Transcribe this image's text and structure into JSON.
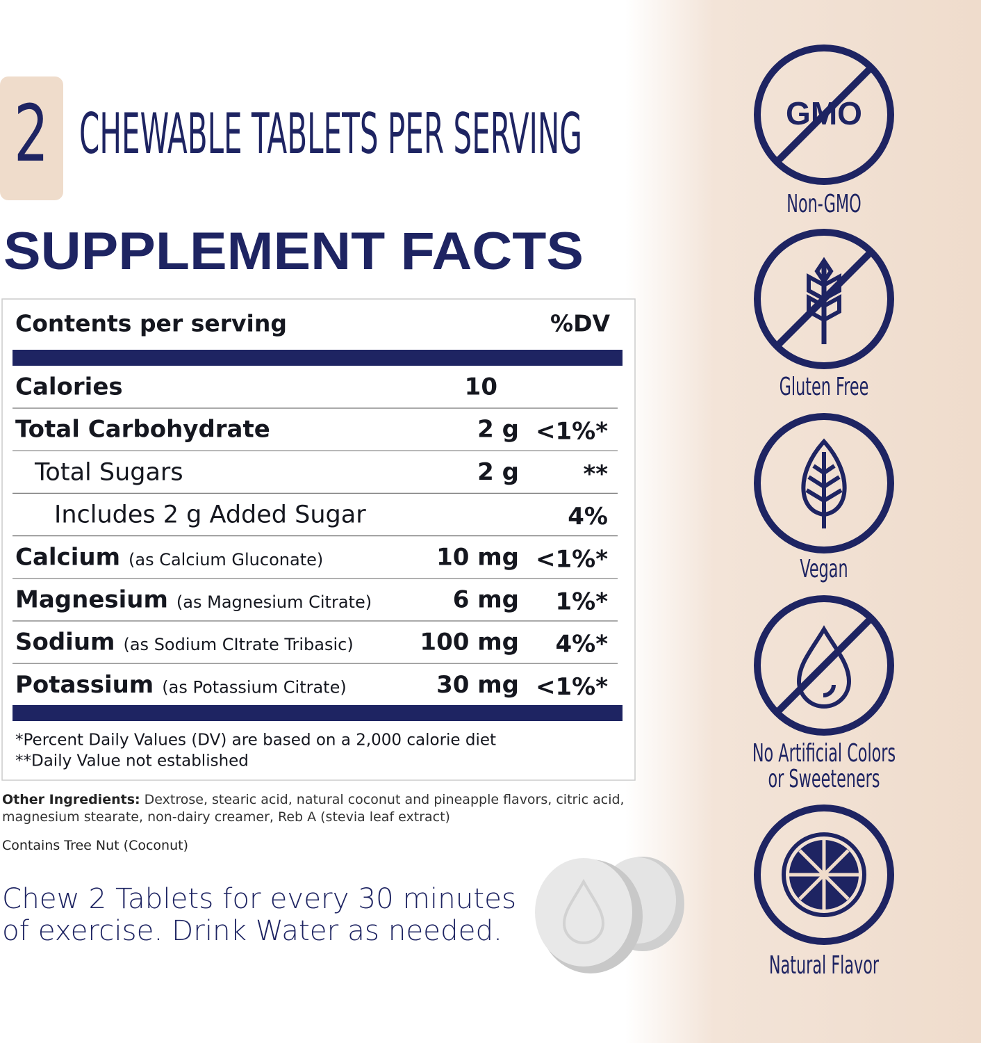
{
  "serving": {
    "number": "2",
    "text": "CHEWABLE TABLETS PER SERVING"
  },
  "title": "SUPPLEMENT FACTS",
  "table": {
    "header": [
      "Contents per serving",
      "%DV"
    ],
    "rows": [
      {
        "name": "Calories",
        "amount": "10"
      },
      {
        "name": "Total Carbohydrate",
        "amount": "2 g",
        "dv": "<1%*"
      },
      {
        "name": "Total Sugars",
        "amount": "2 g",
        "dv": "**"
      },
      {
        "name": "Includes 2 g Added Sugar",
        "dv": "4%"
      },
      {
        "name": "Calcium",
        "source": "(as Calcium Gluconate)",
        "amount": "10 mg",
        "dv": "<1%*"
      },
      {
        "name": "Magnesium",
        "source": "(as Magnesium Citrate)",
        "amount": "6 mg",
        "dv": "1%*"
      },
      {
        "name": "Sodium",
        "source": "(as Sodium CItrate Tribasic)",
        "amount": "100 mg",
        "dv": "4%*"
      },
      {
        "name": "Potassium",
        "source": "(as Potassium Citrate)",
        "amount": "30 mg",
        "dv": "<1%*"
      }
    ],
    "footnotes": [
      "*Percent Daily Values (DV) are based on a 2,000 calorie diet",
      "**Daily Value not established"
    ]
  },
  "other_ingredients": {
    "label": "Other Ingredients:",
    "text": "Dextrose, stearic acid, natural coconut and pineapple flavors, citric acid, magnesium stearate, non-dairy creamer, Reb A (stevia leaf extract)"
  },
  "allergen": "Contains Tree Nut (Coconut)",
  "directions": [
    "Chew 2 Tablets for every 30 minutes",
    "of exercise. Drink Water as needed."
  ],
  "badges": [
    {
      "icon_text": "GMO",
      "lines": [
        "Non-GMO"
      ]
    },
    {
      "lines": [
        "Gluten Free"
      ]
    },
    {
      "lines": [
        "Vegan"
      ]
    },
    {
      "lines": [
        "No Artificial Colors",
        "or Sweeteners"
      ]
    },
    {
      "lines": [
        "Natural Flavor"
      ]
    }
  ]
}
